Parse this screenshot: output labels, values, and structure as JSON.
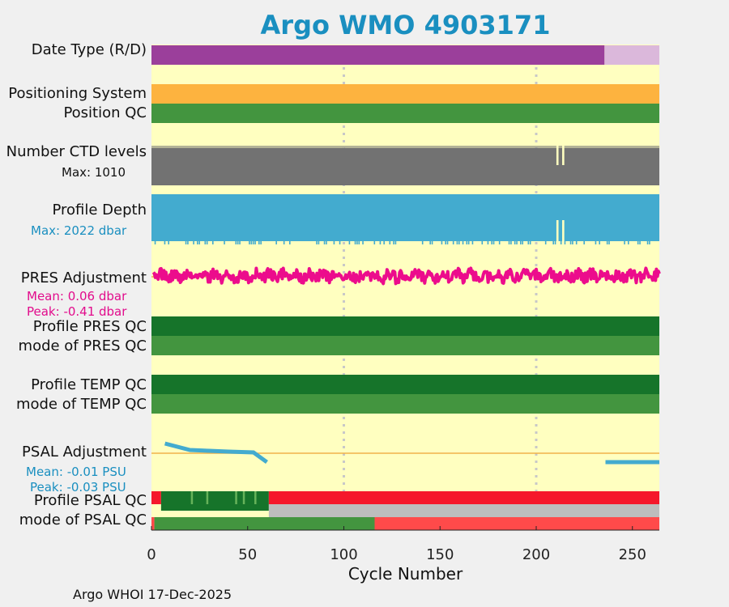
{
  "title": "Argo WMO 4903171",
  "footer": "Argo WHOI 17-Dec-2025",
  "rows": {
    "date_type": "Date Type (R/D)",
    "positioning": "Positioning System",
    "position_qc": "Position QC",
    "ctd_levels": "Number CTD levels",
    "ctd_max": "Max: 1010",
    "profile_depth": "Profile Depth",
    "depth_max": "Max: 2022 dbar",
    "pres_adj": "PRES Adjustment",
    "pres_mean": "Mean: 0.06 dbar",
    "pres_peak": "Peak: -0.41 dbar",
    "profile_pres_qc": "Profile PRES QC",
    "mode_pres_qc": "mode of PRES QC",
    "profile_temp_qc": "Profile TEMP QC",
    "mode_temp_qc": "mode of TEMP QC",
    "psal_adj": "PSAL Adjustment",
    "psal_mean": "Mean: -0.01 PSU",
    "psal_peak": "Peak: -0.03 PSU",
    "profile_psal_qc": "Profile PSAL QC",
    "mode_psal_qc": "mode of PSAL QC"
  },
  "colors": {
    "title": "#1a8fc0",
    "background": "#ffffc0",
    "realtime": "#9b3f9b",
    "delayed": "#dbb8db",
    "positioning": "#fdb33f",
    "qc_good": "#43953f",
    "qc_dark": "#16742a",
    "qc_bad": "#f5172b",
    "qc_bad_light": "#ff4a4a",
    "qc_gray": "#bdbdbd",
    "ctd": "#727272",
    "depth": "#43abcf",
    "pres": "#ec0c8c",
    "psal": "#43abcf",
    "zero_line": "#f0b24a"
  },
  "chart_data": {
    "type": "timeline",
    "xlabel": "Cycle Number",
    "xlim": [
      0,
      264
    ],
    "xticks": [
      0,
      50,
      100,
      150,
      200,
      250
    ],
    "vgrid": [
      100,
      200
    ],
    "date_type_segments": [
      {
        "from": 0,
        "to": 235.5,
        "value": "R"
      },
      {
        "from": 235.5,
        "to": 264,
        "value": "D"
      }
    ],
    "ctd_levels_max": 1010,
    "ctd_gaps": [
      211,
      214
    ],
    "profile_depth_max_dbar": 2022,
    "depth_gaps": [
      211,
      214
    ],
    "pres_adjustment": {
      "mean": 0.06,
      "peak": -0.41,
      "units": "dbar"
    },
    "psal_adjustment": {
      "mean": -0.01,
      "peak": -0.03,
      "units": "PSU",
      "segments": [
        [
          [
            7,
            0.012
          ],
          [
            20,
            0.004
          ],
          [
            30,
            0.003
          ],
          [
            40,
            0.002
          ],
          [
            53,
            0.001
          ],
          [
            60,
            -0.011
          ]
        ],
        [
          [
            236,
            -0.011
          ],
          [
            264,
            -0.011
          ]
        ]
      ]
    },
    "profile_psal_qc": [
      {
        "from": 0,
        "to": 5,
        "flag": "F"
      },
      {
        "from": 5,
        "to": 61,
        "flag": "A"
      },
      {
        "from": 61,
        "to": 264,
        "flag": "F"
      }
    ],
    "profile_psal_light_cycles": [
      21,
      29,
      44,
      48,
      54
    ],
    "mode_psal_qc_top": [
      {
        "from": 61,
        "to": 264,
        "flag": "gray"
      }
    ],
    "mode_psal_qc_bottom": [
      {
        "from": 0,
        "to": 1.5,
        "flag": "4"
      },
      {
        "from": 1.5,
        "to": 116,
        "flag": "1"
      },
      {
        "from": 116,
        "to": 264,
        "flag": "4"
      }
    ]
  }
}
